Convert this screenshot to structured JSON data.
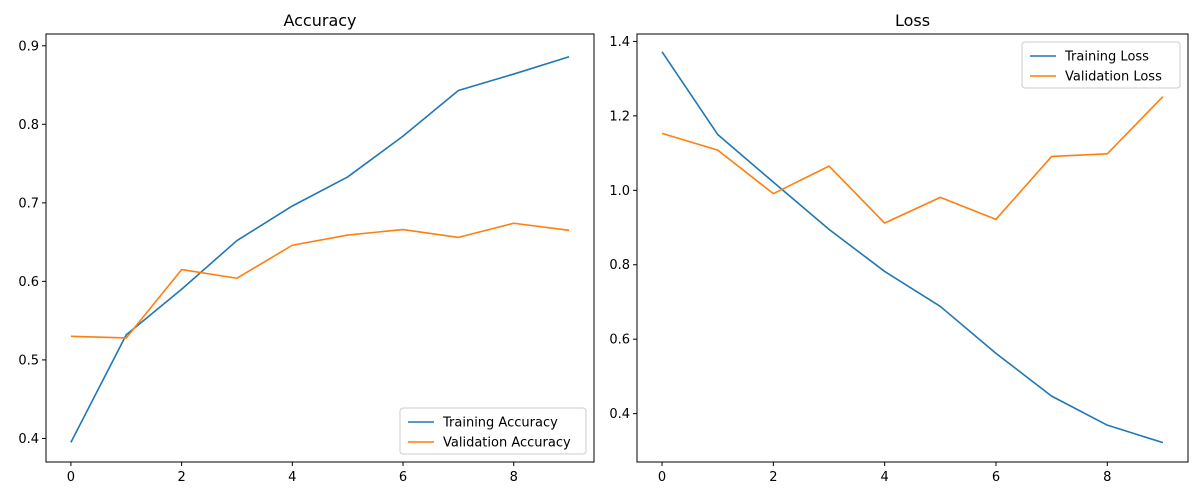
{
  "chart_data": [
    {
      "type": "line",
      "title": "Accuracy",
      "xlabel": "",
      "ylabel": "",
      "x": [
        0,
        1,
        2,
        3,
        4,
        5,
        6,
        7,
        8,
        9
      ],
      "xlim": [
        -0.45,
        9.45
      ],
      "ylim": [
        0.37,
        0.915
      ],
      "xticks": [
        0,
        2,
        4,
        6,
        8
      ],
      "yticks": [
        0.4,
        0.5,
        0.6,
        0.7,
        0.8,
        0.9
      ],
      "grid": false,
      "legend_position": "bottom-right",
      "series": [
        {
          "name": "Training Accuracy",
          "color": "#1f77b4",
          "values": [
            0.395,
            0.532,
            0.59,
            0.652,
            0.696,
            0.733,
            0.785,
            0.843,
            0.864,
            0.886
          ]
        },
        {
          "name": "Validation Accuracy",
          "color": "#ff7f0e",
          "values": [
            0.53,
            0.528,
            0.615,
            0.604,
            0.646,
            0.659,
            0.666,
            0.656,
            0.674,
            0.665
          ]
        }
      ]
    },
    {
      "type": "line",
      "title": "Loss",
      "xlabel": "",
      "ylabel": "",
      "x": [
        0,
        1,
        2,
        3,
        4,
        5,
        6,
        7,
        8,
        9
      ],
      "xlim": [
        -0.45,
        9.45
      ],
      "ylim": [
        0.27,
        1.42
      ],
      "xticks": [
        0,
        2,
        4,
        6,
        8
      ],
      "yticks": [
        0.4,
        0.6,
        0.8,
        1.0,
        1.2,
        1.4
      ],
      "grid": false,
      "legend_position": "top-right",
      "series": [
        {
          "name": "Training Loss",
          "color": "#1f77b4",
          "values": [
            1.372,
            1.15,
            1.022,
            0.895,
            0.782,
            0.688,
            0.562,
            0.447,
            0.369,
            0.322
          ]
        },
        {
          "name": "Validation Loss",
          "color": "#ff7f0e",
          "values": [
            1.153,
            1.108,
            0.991,
            1.065,
            0.912,
            0.981,
            0.922,
            1.091,
            1.098,
            1.252
          ]
        }
      ]
    }
  ]
}
